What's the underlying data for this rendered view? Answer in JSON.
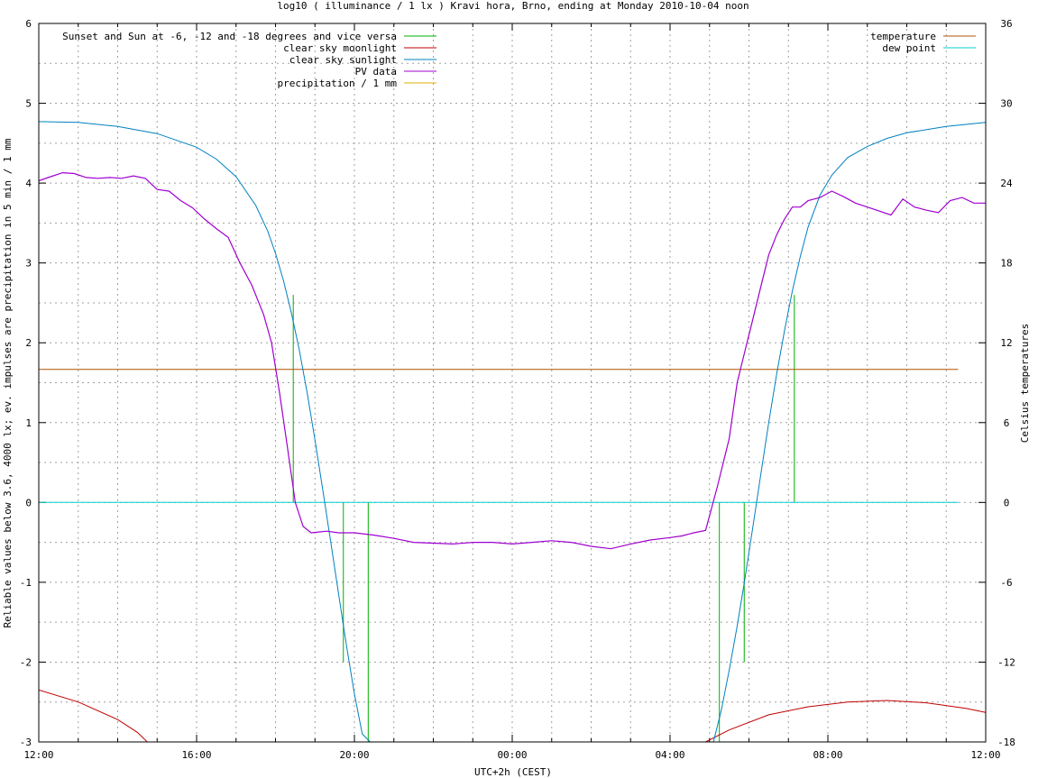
{
  "chart_data": {
    "type": "line",
    "title": "log10 ( illuminance / 1 lx ) Kravi hora, Brno, ending at Monday 2010-10-04 noon",
    "xlabel": "UTC+2h (CEST)",
    "ylabel": "Reliable values below 3.6, 4000 lx; ev. impulses are precipitation in 5 min / 1 mm",
    "y2label": "Celsius temperatures",
    "xlim": [
      0,
      24
    ],
    "ylim": [
      -3,
      6
    ],
    "y2lim": [
      -18,
      36
    ],
    "x_tick_labels": [
      "12:00",
      "16:00",
      "20:00",
      "00:00",
      "04:00",
      "08:00",
      "12:00"
    ],
    "x_tick_hours": [
      0,
      4,
      8,
      12,
      16,
      20,
      24
    ],
    "y_ticks": [
      -3,
      -2,
      -1,
      0,
      1,
      2,
      3,
      4,
      5,
      6
    ],
    "y2_ticks": [
      -18,
      -12,
      -6,
      0,
      6,
      12,
      18,
      24,
      30,
      36
    ],
    "grid": true,
    "legend_left": [
      "Sunset and Sun at -6, -12 and -18 degrees and vice versa",
      "clear sky moonlight",
      "clear sky sunlight",
      "PV data",
      "precipitation / 1 mm"
    ],
    "legend_right": [
      "temperature",
      "dew point"
    ],
    "colors": {
      "sun_events": "#00b000",
      "moonlight": "#c00000",
      "sunlight": "#0080c0",
      "pv": "#a000d0",
      "precipitation": "#e0b000",
      "temperature": "#b05000",
      "dew_point": "#00d0d0"
    },
    "sun_event_markers": [
      {
        "hour": 6.45,
        "top": 2.6
      },
      {
        "hour": 7.72,
        "top": -2.0
      },
      {
        "hour": 8.35,
        "top": -3.0
      },
      {
        "hour": 17.25,
        "top": -3.0
      },
      {
        "hour": 17.88,
        "top": -2.0
      },
      {
        "hour": 19.15,
        "top": 2.6
      }
    ],
    "series": [
      {
        "name": "clear sky sunlight",
        "x": [
          0,
          1,
          2,
          3,
          4,
          4.5,
          5,
          5.5,
          5.8,
          6.0,
          6.2,
          6.4,
          6.6,
          6.8,
          7.0,
          7.2,
          7.4,
          7.6,
          7.8,
          8.0,
          8.2,
          8.4,
          17.1,
          17.3,
          17.5,
          17.7,
          17.9,
          18.1,
          18.3,
          18.5,
          18.7,
          18.9,
          19.1,
          19.3,
          19.5,
          19.8,
          20.1,
          20.5,
          21,
          21.5,
          22,
          23,
          24
        ],
        "y": [
          4.77,
          4.76,
          4.71,
          4.62,
          4.45,
          4.3,
          4.08,
          3.72,
          3.4,
          3.12,
          2.78,
          2.38,
          1.92,
          1.38,
          0.78,
          0.15,
          -0.5,
          -1.15,
          -1.8,
          -2.4,
          -2.9,
          -3.0,
          -3.0,
          -2.6,
          -2.1,
          -1.55,
          -0.95,
          -0.3,
          0.35,
          1.0,
          1.6,
          2.15,
          2.65,
          3.08,
          3.45,
          3.85,
          4.1,
          4.32,
          4.46,
          4.56,
          4.63,
          4.71,
          4.76
        ]
      },
      {
        "name": "clear sky moonlight",
        "segments": [
          {
            "x": [
              0,
              1,
              2,
              2.5,
              2.75
            ],
            "y": [
              -2.35,
              -2.5,
              -2.72,
              -2.88,
              -3.0
            ]
          },
          {
            "x": [
              16.9,
              17.5,
              18.5,
              19.5,
              20.5,
              21.5,
              22.5,
              23.5,
              24
            ],
            "y": [
              -3.0,
              -2.85,
              -2.66,
              -2.56,
              -2.5,
              -2.48,
              -2.51,
              -2.58,
              -2.63
            ]
          }
        ]
      },
      {
        "name": "PV data",
        "x": [
          0,
          0.3,
          0.6,
          0.9,
          1.2,
          1.5,
          1.8,
          2.1,
          2.4,
          2.7,
          3.0,
          3.3,
          3.6,
          3.9,
          4.2,
          4.5,
          4.8,
          5.1,
          5.4,
          5.7,
          5.9,
          6.1,
          6.3,
          6.5,
          6.7,
          6.9,
          7.1,
          7.3,
          7.6,
          8.0,
          8.5,
          9.0,
          9.5,
          10.0,
          10.5,
          11.0,
          11.5,
          12.0,
          12.5,
          13.0,
          13.5,
          14.0,
          14.5,
          15.0,
          15.5,
          16.0,
          16.3,
          16.6,
          16.9,
          17.2,
          17.5,
          17.7,
          17.9,
          18.1,
          18.3,
          18.5,
          18.7,
          18.9,
          19.1,
          19.3,
          19.5,
          19.8,
          20.1,
          20.4,
          20.7,
          21.0,
          21.3,
          21.6,
          21.9,
          22.2,
          22.5,
          22.8,
          23.1,
          23.4,
          23.7,
          24.0
        ],
        "y": [
          4.03,
          4.08,
          4.13,
          4.12,
          4.07,
          4.06,
          4.07,
          4.06,
          4.09,
          4.06,
          3.92,
          3.9,
          3.78,
          3.69,
          3.55,
          3.43,
          3.32,
          3.0,
          2.72,
          2.35,
          2.0,
          1.38,
          0.7,
          0.0,
          -0.3,
          -0.38,
          -0.37,
          -0.36,
          -0.38,
          -0.38,
          -0.41,
          -0.45,
          -0.5,
          -0.51,
          -0.52,
          -0.5,
          -0.5,
          -0.52,
          -0.5,
          -0.48,
          -0.5,
          -0.55,
          -0.58,
          -0.52,
          -0.47,
          -0.44,
          -0.42,
          -0.38,
          -0.35,
          0.2,
          0.8,
          1.5,
          1.9,
          2.3,
          2.7,
          3.1,
          3.35,
          3.55,
          3.7,
          3.7,
          3.78,
          3.82,
          3.9,
          3.83,
          3.75,
          3.7,
          3.65,
          3.6,
          3.8,
          3.7,
          3.66,
          3.63,
          3.78,
          3.82,
          3.75,
          3.75
        ]
      },
      {
        "name": "temperature",
        "axis": "y2",
        "x": [
          0,
          23.3
        ],
        "y": [
          10,
          10
        ]
      },
      {
        "name": "dew point",
        "axis": "y2",
        "x": [
          0,
          23.3
        ],
        "y": [
          0,
          0
        ]
      }
    ]
  }
}
